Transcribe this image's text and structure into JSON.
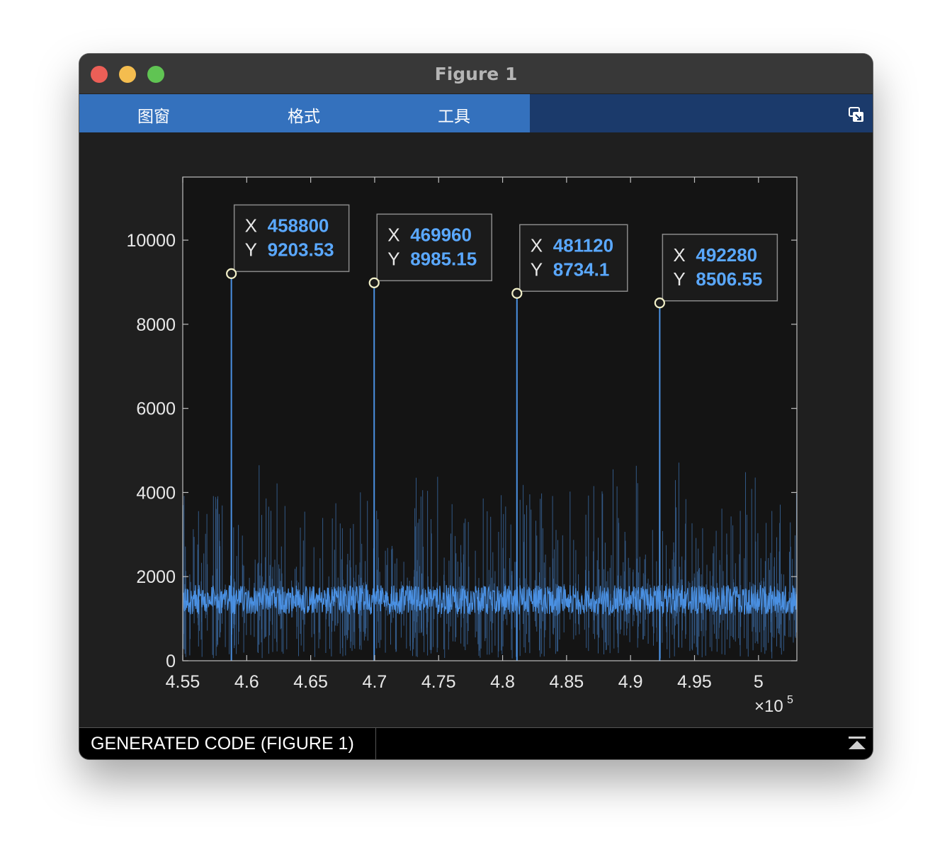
{
  "window": {
    "title": "Figure 1"
  },
  "toolbar": {
    "tabs": [
      "图窗",
      "格式",
      "工具"
    ]
  },
  "status": {
    "label": "GENERATED CODE (FIGURE 1)"
  },
  "colors": {
    "line": "#4a90e2",
    "axes_bg": "#141414",
    "datatip_value": "#5aa8ff",
    "tab_active": "#3471bd",
    "toolbar_bg": "#1b3a6b"
  },
  "icons": {
    "undock": "undock-icon",
    "collapse": "collapse-panel-icon"
  },
  "chart_data": {
    "type": "line",
    "title": "",
    "xlabel": "",
    "ylabel": "",
    "xlim": [
      455000,
      503000
    ],
    "ylim": [
      0,
      11500
    ],
    "x_exponent_label": "×10",
    "x_exponent": "5",
    "xticks": [
      455000,
      460000,
      465000,
      470000,
      475000,
      480000,
      485000,
      490000,
      495000,
      500000
    ],
    "xtick_labels": [
      "4.55",
      "4.6",
      "4.65",
      "4.7",
      "4.75",
      "4.8",
      "4.85",
      "4.9",
      "4.95",
      "5"
    ],
    "yticks": [
      0,
      2000,
      4000,
      6000,
      8000,
      10000
    ],
    "ytick_labels": [
      "0",
      "2000",
      "4000",
      "6000",
      "8000",
      "10000"
    ],
    "grid": false,
    "series": [
      {
        "baseline_mean": 1450,
        "baseline_spread": 350,
        "peaks": [
          {
            "x": 458800,
            "y": 9203.53
          },
          {
            "x": 469960,
            "y": 8985.15
          },
          {
            "x": 481120,
            "y": 8734.1
          },
          {
            "x": 492280,
            "y": 8506.55
          }
        ]
      }
    ],
    "datatips": [
      {
        "x_label": "X",
        "y_label": "Y",
        "x": "458800",
        "y": "9203.53"
      },
      {
        "x_label": "X",
        "y_label": "Y",
        "x": "469960",
        "y": "8985.15"
      },
      {
        "x_label": "X",
        "y_label": "Y",
        "x": "481120",
        "y": "8734.1"
      },
      {
        "x_label": "X",
        "y_label": "Y",
        "x": "492280",
        "y": "8506.55"
      }
    ]
  }
}
